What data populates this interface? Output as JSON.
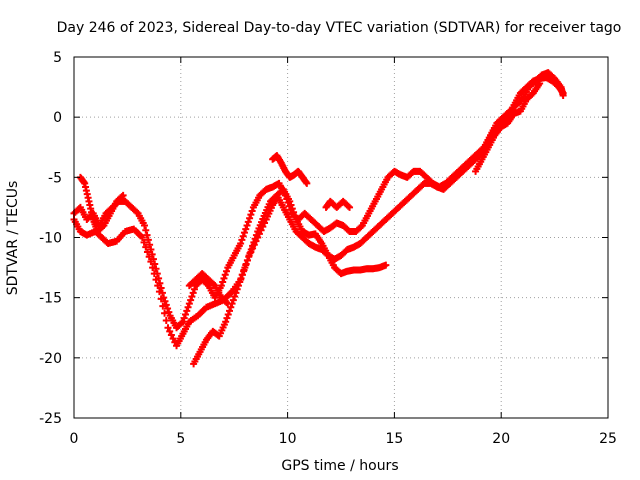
{
  "chart_data": {
    "type": "scatter",
    "title": "Day 246 of 2023, Sidereal Day-to-day VTEC variation (SDTVAR) for receiver tago",
    "xlabel": "GPS time / hours",
    "ylabel": "SDTVAR / TECUs",
    "xlim": [
      0,
      25
    ],
    "ylim": [
      -25,
      5
    ],
    "xticks": [
      0,
      5,
      10,
      15,
      20,
      25
    ],
    "yticks": [
      -25,
      -20,
      -15,
      -10,
      -5,
      0,
      5
    ],
    "grid": true,
    "marker": "plus",
    "color": "#ff0000",
    "series": [
      {
        "x": [
          0.0,
          0.3,
          0.6,
          1.0,
          1.3,
          1.6,
          2.0,
          2.4,
          2.8,
          3.2,
          3.6,
          4.0,
          4.4,
          4.8,
          5.1,
          5.4,
          5.8,
          6.2,
          6.6,
          7.0,
          7.4,
          7.8,
          8.2,
          8.6,
          9.0,
          9.3,
          9.5,
          9.8,
          10.1,
          10.4,
          10.7,
          11.0,
          11.3,
          11.6,
          11.9,
          12.2,
          12.5,
          12.8,
          13.1,
          13.4,
          13.7,
          14.0,
          14.3,
          14.6
        ],
        "y": [
          -8.5,
          -9.5,
          -9.8,
          -9.5,
          -10.0,
          -10.5,
          -10.3,
          -9.5,
          -9.3,
          -10.0,
          -12.0,
          -14.5,
          -17.5,
          -19.0,
          -18.0,
          -17.0,
          -16.5,
          -15.8,
          -15.5,
          -15.2,
          -14.5,
          -13.5,
          -11.5,
          -10.0,
          -8.5,
          -7.3,
          -6.5,
          -6.0,
          -7.0,
          -8.5,
          -9.5,
          -9.8,
          -9.7,
          -10.5,
          -11.5,
          -12.5,
          -13.0,
          -12.8,
          -12.7,
          -12.7,
          -12.6,
          -12.6,
          -12.5,
          -12.3
        ]
      },
      {
        "x": [
          0.0,
          0.3,
          0.6,
          0.9,
          1.2,
          1.5,
          1.8,
          2.1,
          2.4,
          2.7,
          3.0,
          3.3,
          3.6,
          3.9,
          4.2,
          4.5,
          4.8,
          5.1,
          5.4,
          5.7,
          6.0,
          6.3,
          6.6,
          6.9,
          7.2,
          7.5,
          7.8,
          8.1,
          8.4,
          8.7,
          9.0,
          9.3,
          9.6,
          9.9,
          10.2,
          10.5,
          10.8,
          11.1,
          11.4,
          11.7,
          12.0,
          12.3,
          12.6,
          12.9,
          13.2,
          13.5,
          13.8,
          14.1,
          14.4,
          14.7,
          15.0,
          15.3,
          15.6,
          15.9,
          16.2,
          16.5,
          16.8,
          17.1,
          17.4,
          17.7,
          18.0,
          18.3,
          18.6,
          18.9,
          19.2,
          19.5,
          19.8,
          20.1,
          20.4,
          20.7,
          21.0,
          21.3,
          21.6,
          21.9,
          22.2,
          22.5,
          22.8,
          22.9
        ],
        "y": [
          -8.0,
          -7.5,
          -8.5,
          -8.0,
          -9.0,
          -8.0,
          -7.5,
          -7.0,
          -7.0,
          -7.5,
          -8.0,
          -9.0,
          -11.0,
          -13.0,
          -15.0,
          -16.5,
          -17.5,
          -17.0,
          -15.5,
          -14.0,
          -13.5,
          -14.0,
          -15.0,
          -14.0,
          -12.5,
          -11.5,
          -10.5,
          -9.0,
          -7.5,
          -6.5,
          -6.0,
          -5.8,
          -5.5,
          -6.5,
          -8.0,
          -8.5,
          -8.0,
          -8.5,
          -9.0,
          -9.5,
          -9.2,
          -8.8,
          -9.0,
          -9.5,
          -9.5,
          -9.0,
          -8.0,
          -7.0,
          -6.0,
          -5.0,
          -4.5,
          -4.8,
          -5.0,
          -4.5,
          -4.5,
          -5.0,
          -5.5,
          -5.8,
          -5.5,
          -5.0,
          -4.5,
          -4.0,
          -3.5,
          -3.0,
          -2.5,
          -1.5,
          -0.5,
          0.0,
          0.5,
          1.0,
          1.5,
          2.5,
          3.0,
          3.5,
          3.7,
          3.2,
          2.5,
          1.8
        ]
      },
      {
        "x": [
          5.6,
          5.9,
          6.2,
          6.5,
          6.8,
          7.1,
          7.4,
          7.7,
          8.0,
          8.3,
          8.6,
          8.9,
          9.2,
          9.5,
          9.8,
          10.1,
          10.4,
          10.7,
          11.0,
          11.3,
          11.6,
          11.9,
          12.2,
          12.5,
          12.8,
          13.1,
          13.4,
          13.7,
          14.0,
          14.3,
          14.6,
          14.9,
          15.2,
          15.5,
          15.8,
          16.1,
          16.4,
          16.7,
          17.0,
          17.3,
          17.6,
          17.9,
          18.2,
          18.5,
          18.8,
          19.1,
          19.4,
          19.7,
          20.0,
          20.3,
          20.6,
          20.9,
          21.2,
          21.5,
          21.8,
          22.1,
          22.4,
          22.7,
          22.9
        ],
        "y": [
          -20.5,
          -19.5,
          -18.5,
          -17.8,
          -18.2,
          -17.0,
          -15.5,
          -14.0,
          -12.5,
          -11.0,
          -9.5,
          -8.2,
          -7.0,
          -6.5,
          -7.5,
          -8.5,
          -9.5,
          -10.0,
          -10.5,
          -10.8,
          -11.0,
          -11.5,
          -11.8,
          -11.5,
          -11.0,
          -10.8,
          -10.5,
          -10.0,
          -9.5,
          -9.0,
          -8.5,
          -8.0,
          -7.5,
          -7.0,
          -6.5,
          -6.0,
          -5.5,
          -5.5,
          -5.8,
          -6.0,
          -5.5,
          -5.0,
          -4.5,
          -4.0,
          -3.5,
          -3.0,
          -2.0,
          -1.0,
          -0.5,
          0.0,
          1.0,
          2.0,
          2.5,
          3.0,
          3.2,
          3.3,
          3.0,
          2.5,
          2.0
        ]
      },
      {
        "x": [
          0.3,
          0.5,
          0.7,
          0.9,
          1.1,
          1.4,
          1.7,
          2.0,
          2.3
        ],
        "y": [
          -5.0,
          -5.5,
          -7.0,
          -8.5,
          -9.5,
          -9.0,
          -8.0,
          -7.0,
          -6.5
        ]
      },
      {
        "x": [
          5.4,
          5.7,
          6.0,
          6.3,
          6.6,
          6.9,
          7.2
        ],
        "y": [
          -14.0,
          -13.5,
          -13.0,
          -13.5,
          -14.0,
          -15.0,
          -15.5
        ]
      },
      {
        "x": [
          9.3,
          9.5,
          9.7,
          9.9,
          10.1,
          10.3,
          10.5,
          10.7,
          10.9
        ],
        "y": [
          -3.5,
          -3.2,
          -3.8,
          -4.5,
          -5.0,
          -4.8,
          -4.5,
          -5.0,
          -5.5
        ]
      },
      {
        "x": [
          11.8,
          12.0,
          12.3,
          12.6,
          12.9
        ],
        "y": [
          -7.5,
          -7.0,
          -7.5,
          -7.0,
          -7.5
        ]
      },
      {
        "x": [
          18.8,
          19.1,
          19.4,
          19.7,
          20.0,
          20.3,
          20.6,
          20.9,
          21.2,
          21.5,
          21.8
        ],
        "y": [
          -4.5,
          -3.5,
          -2.5,
          -1.5,
          -0.8,
          -0.5,
          0.3,
          0.5,
          1.5,
          2.0,
          2.8
        ]
      }
    ]
  }
}
